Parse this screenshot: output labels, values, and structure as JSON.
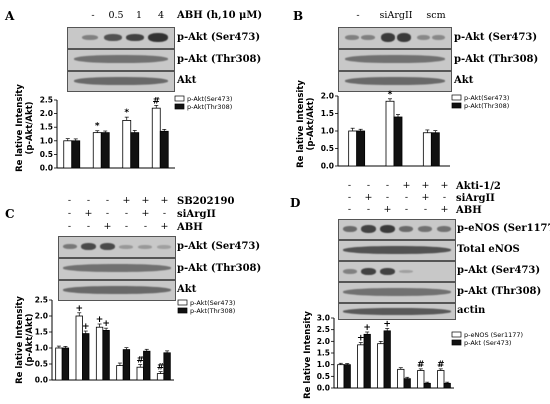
{
  "panels": [
    {
      "label": "A",
      "conditions": {
        "header_values": [
          "-",
          "0.5",
          "1",
          "4"
        ],
        "header_title": "ABH (h,10 μM)"
      },
      "blots": [
        "p-Akt (Ser473)",
        "p-Akt (Thr308)",
        "Akt"
      ],
      "ylabel": "Re lative Intensity\n(p-Akt/Akt)",
      "chart_data": {
        "type": "bar",
        "categories": [
          "-",
          "0.5",
          "1",
          "4"
        ],
        "series": [
          {
            "name": "p-Akt(Ser473)",
            "color": "#ffffff",
            "values": [
              1.0,
              1.3,
              1.75,
              2.2
            ],
            "errors": [
              0.08,
              0.07,
              0.12,
              0.1
            ]
          },
          {
            "name": "p-Akt(Thr308)",
            "color": "#111111",
            "values": [
              1.0,
              1.3,
              1.3,
              1.35
            ],
            "errors": [
              0.07,
              0.06,
              0.08,
              0.07
            ]
          }
        ],
        "annotations": [
          {
            "category": 1,
            "series": 0,
            "text": "*"
          },
          {
            "category": 2,
            "series": 0,
            "text": "*"
          },
          {
            "category": 3,
            "series": 0,
            "text": "#"
          }
        ],
        "ylim": [
          0,
          2.5
        ],
        "yticks": [
          "0.0",
          "0.5",
          "1.0",
          "1.5",
          "2.0",
          "2.5"
        ],
        "legend_position": "top-right"
      }
    },
    {
      "label": "B",
      "conditions": {
        "header_values": [
          "-",
          "siArgII",
          "scm"
        ]
      },
      "blots": [
        "p-Akt (Ser473)",
        "p-Akt (Thr308)",
        "Akt"
      ],
      "ylabel": "Re lative Intensity\n(p-Akt/Akt)",
      "chart_data": {
        "type": "bar",
        "categories": [
          "-",
          "siArgII",
          "scm"
        ],
        "series": [
          {
            "name": "p-Akt(Ser473)",
            "color": "#ffffff",
            "values": [
              1.0,
              1.85,
              0.95
            ],
            "errors": [
              0.08,
              0.07,
              0.08
            ]
          },
          {
            "name": "p-Akt(Thr308)",
            "color": "#111111",
            "values": [
              1.0,
              1.4,
              0.95
            ],
            "errors": [
              0.05,
              0.07,
              0.06
            ]
          }
        ],
        "annotations": [
          {
            "category": 1,
            "series": 0,
            "text": "*"
          }
        ],
        "ylim": [
          0,
          2.0
        ],
        "yticks": [
          "0.0",
          "0.5",
          "1.0",
          "1.5",
          "2.0"
        ],
        "legend_position": "top-right"
      }
    },
    {
      "label": "C",
      "conditions": {
        "rows": [
          {
            "name": "SB202190",
            "values": [
              "-",
              "-",
              "-",
              "+",
              "+",
              "+"
            ]
          },
          {
            "name": "siArgII",
            "values": [
              "-",
              "+",
              "-",
              "-",
              "+",
              "-"
            ]
          },
          {
            "name": "ABH",
            "values": [
              "-",
              "-",
              "+",
              "-",
              "-",
              "+"
            ]
          }
        ]
      },
      "blots": [
        "p-Akt (Ser473)",
        "p-Akt (Thr308)",
        "Akt"
      ],
      "ylabel": "Re lative Intensity\n(p-Akt/Akt)",
      "chart_data": {
        "type": "bar",
        "categories": [
          "1",
          "2",
          "3",
          "4",
          "5",
          "6"
        ],
        "series": [
          {
            "name": "p-Akt(Ser473)",
            "color": "#ffffff",
            "values": [
              1.0,
              2.0,
              1.65,
              0.45,
              0.4,
              0.2
            ],
            "errors": [
              0.06,
              0.1,
              0.1,
              0.08,
              0.08,
              0.06
            ]
          },
          {
            "name": "p-Akt(Thr308)",
            "color": "#111111",
            "values": [
              1.0,
              1.45,
              1.55,
              0.95,
              0.9,
              0.85
            ],
            "errors": [
              0.05,
              0.08,
              0.07,
              0.06,
              0.06,
              0.06
            ]
          }
        ],
        "annotations": [
          {
            "category": 1,
            "series": 0,
            "text": "+"
          },
          {
            "category": 1,
            "series": 1,
            "text": "+"
          },
          {
            "category": 2,
            "series": 0,
            "text": "+"
          },
          {
            "category": 2,
            "series": 1,
            "text": "+"
          },
          {
            "category": 4,
            "series": 0,
            "text": "#"
          },
          {
            "category": 5,
            "series": 0,
            "text": "#"
          }
        ],
        "ylim": [
          0,
          2.5
        ],
        "yticks": [
          "0.0",
          "0.5",
          "1.0",
          "1.5",
          "2.0",
          "2.5"
        ],
        "legend_position": "top-right"
      }
    },
    {
      "label": "D",
      "conditions": {
        "rows": [
          {
            "name": "Akti-1/2",
            "values": [
              "-",
              "-",
              "-",
              "+",
              "+",
              "+"
            ]
          },
          {
            "name": "siArgII",
            "values": [
              "-",
              "+",
              "-",
              "-",
              "+",
              "-"
            ]
          },
          {
            "name": "ABH",
            "values": [
              "-",
              "-",
              "+",
              "-",
              "-",
              "+"
            ]
          }
        ]
      },
      "blots": [
        "p-eNOS (Ser1177)",
        "Total eNOS",
        "p-Akt (Ser473)",
        "p-Akt (Thr308)",
        "actin"
      ],
      "ylabel": "Re lative Intensity",
      "chart_data": {
        "type": "bar",
        "categories": [
          "1",
          "2",
          "3",
          "4",
          "5",
          "6"
        ],
        "series": [
          {
            "name": "p-eNOS (Ser1177)",
            "color": "#ffffff",
            "values": [
              1.0,
              1.85,
              1.9,
              0.8,
              0.75,
              0.75
            ],
            "errors": [
              0.06,
              0.1,
              0.1,
              0.07,
              0.07,
              0.07
            ]
          },
          {
            "name": "p-Akt (Ser473)",
            "color": "#111111",
            "values": [
              1.0,
              2.3,
              2.45,
              0.4,
              0.2,
              0.2
            ],
            "errors": [
              0.05,
              0.1,
              0.1,
              0.06,
              0.05,
              0.05
            ]
          }
        ],
        "annotations": [
          {
            "category": 1,
            "series": 0,
            "text": "+"
          },
          {
            "category": 1,
            "series": 1,
            "text": "+"
          },
          {
            "category": 2,
            "series": 1,
            "text": "+"
          },
          {
            "category": 4,
            "series": 0,
            "text": "#"
          },
          {
            "category": 5,
            "series": 0,
            "text": "#"
          }
        ],
        "ylim": [
          0,
          3.0
        ],
        "yticks": [
          "0.0",
          "0.5",
          "1.0",
          "1.5",
          "2.0",
          "2.5",
          "3.0"
        ],
        "legend_position": "top-right"
      }
    }
  ]
}
